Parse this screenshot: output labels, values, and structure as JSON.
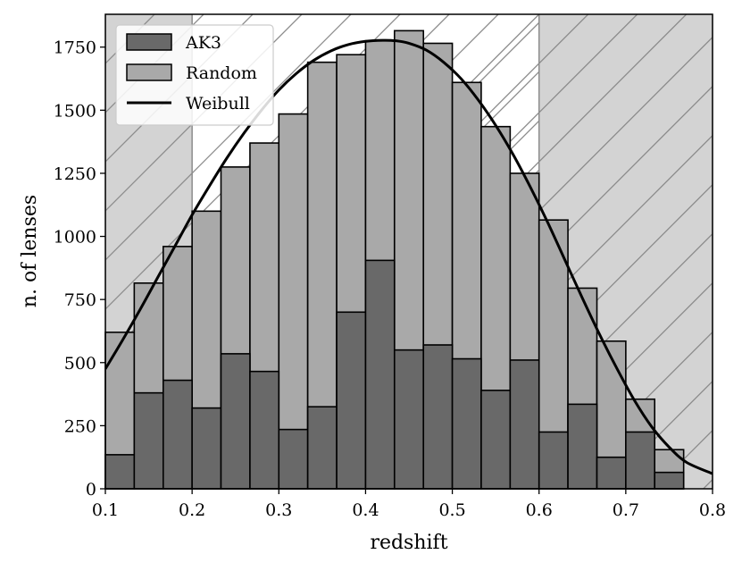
{
  "chart_data": {
    "type": "bar",
    "title": "",
    "xlabel": "redshift",
    "ylabel": "n. of lenses",
    "xlim": [
      0.1,
      0.8
    ],
    "ylim": [
      0,
      1880
    ],
    "xticks": [
      0.1,
      0.2,
      0.3,
      0.4,
      0.5,
      0.6,
      0.7,
      0.8
    ],
    "xtick_labels": [
      "0.1",
      "0.2",
      "0.3",
      "0.4",
      "0.5",
      "0.6",
      "0.7",
      "0.8"
    ],
    "yticks": [
      0,
      250,
      500,
      750,
      1000,
      1250,
      1500,
      1750
    ],
    "ytick_labels": [
      "0",
      "250",
      "500",
      "750",
      "1000",
      "1250",
      "1500",
      "1750"
    ],
    "bin_edges": [
      0.1,
      0.1333,
      0.1667,
      0.2,
      0.2333,
      0.2667,
      0.3,
      0.3333,
      0.3667,
      0.4,
      0.4333,
      0.4667,
      0.5,
      0.5333,
      0.5667,
      0.6,
      0.6333,
      0.6667,
      0.7,
      0.7333,
      0.7667
    ],
    "series": [
      {
        "name": "Random",
        "color": "#a9a9a9",
        "values": [
          620,
          815,
          960,
          1100,
          1275,
          1370,
          1485,
          1690,
          1720,
          1775,
          1815,
          1765,
          1610,
          1435,
          1250,
          1065,
          795,
          585,
          355,
          155
        ]
      },
      {
        "name": "AK3",
        "color": "#696969",
        "values": [
          135,
          380,
          430,
          320,
          535,
          465,
          235,
          325,
          700,
          905,
          550,
          570,
          515,
          390,
          510,
          225,
          335,
          125,
          225,
          65
        ]
      }
    ],
    "lines": [
      {
        "name": "Weibull",
        "color": "#000000",
        "x": [
          0.1,
          0.12,
          0.14,
          0.16,
          0.18,
          0.2,
          0.22,
          0.24,
          0.26,
          0.28,
          0.3,
          0.32,
          0.34,
          0.36,
          0.38,
          0.4,
          0.42,
          0.435,
          0.45,
          0.47,
          0.49,
          0.51,
          0.53,
          0.55,
          0.57,
          0.59,
          0.61,
          0.63,
          0.65,
          0.67,
          0.69,
          0.71,
          0.73,
          0.75,
          0.77,
          0.8
        ],
        "y": [
          475,
          590,
          710,
          835,
          960,
          1085,
          1200,
          1310,
          1410,
          1500,
          1580,
          1645,
          1697,
          1735,
          1760,
          1773,
          1777,
          1775,
          1765,
          1738,
          1690,
          1625,
          1540,
          1440,
          1325,
          1195,
          1055,
          905,
          755,
          610,
          475,
          350,
          245,
          165,
          105,
          60
        ]
      }
    ],
    "shaded_regions": [
      {
        "x": [
          0.1,
          0.2
        ],
        "fill": "#d3d3d3",
        "hatch": "/"
      },
      {
        "x": [
          0.6,
          0.8
        ],
        "fill": "#d3d3d3",
        "hatch": "/"
      }
    ],
    "legend": {
      "position": "top-left",
      "entries": [
        {
          "label": "AK3",
          "kind": "patch",
          "color": "#696969"
        },
        {
          "label": "Random",
          "kind": "patch",
          "color": "#a9a9a9"
        },
        {
          "label": "Weibull",
          "kind": "line",
          "color": "#000000"
        }
      ]
    },
    "grid": false
  }
}
